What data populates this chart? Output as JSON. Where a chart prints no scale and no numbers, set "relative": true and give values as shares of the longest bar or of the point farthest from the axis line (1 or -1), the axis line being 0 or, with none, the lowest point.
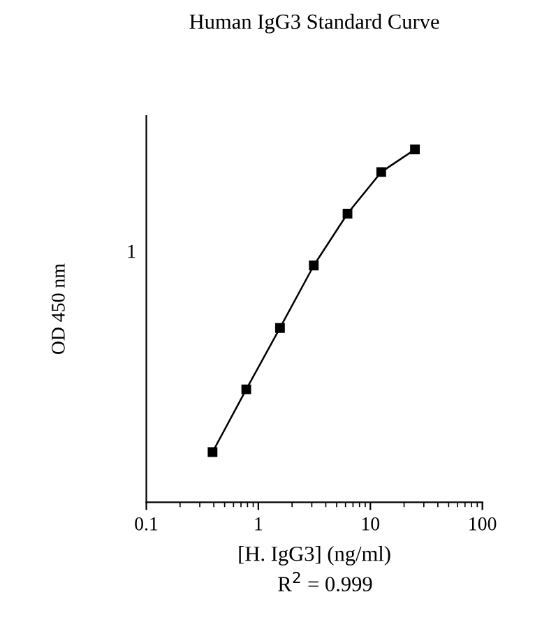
{
  "chart_data": {
    "type": "line",
    "title": "Human IgG3 Standard Curve",
    "xlabel": "[H. IgG3] (ng/ml)",
    "ylabel": "OD 450 nm",
    "annotations": [
      "1",
      "R$^{2}$ = 0.999"
    ],
    "log": "x",
    "relative": true,
    "x": [
      0.39,
      0.78,
      1.56,
      3.125,
      6.25,
      12.5,
      25
    ],
    "series": [
      {
        "color": "#000000",
        "values": [
          0.142,
          0.32,
          0.494,
          0.671,
          0.818,
          0.936,
          1
        ]
      }
    ],
    "xlim": [
      0.1,
      100
    ],
    "xticks": [
      0.1,
      1,
      10,
      100
    ],
    "marker": "square",
    "line_style": "solid",
    "grid": false,
    "legend": false
  }
}
